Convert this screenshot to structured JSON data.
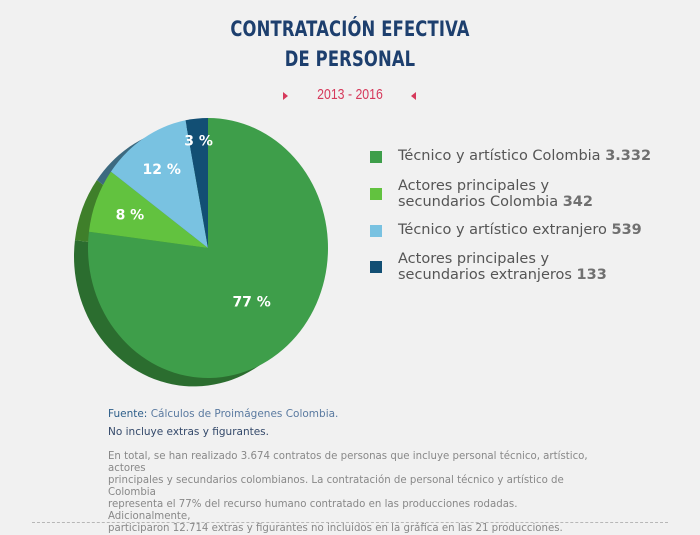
{
  "header": {
    "title_line1": "CONTRATACIÓN EFECTIVA",
    "title_line2": "DE PERSONAL",
    "subtitle": "2013 - 2016"
  },
  "chart_data": {
    "type": "pie",
    "title": "CONTRATACIÓN EFECTIVA DE PERSONAL",
    "subtitle": "2013 - 2016",
    "legend_position": "right",
    "series": [
      {
        "name": "Técnico y artístico Colombia",
        "value": 3332,
        "value_label": "3.332",
        "percent": 77,
        "percent_label": "77 %",
        "color": "#3e9e4a",
        "side_color": "#2b6d2f"
      },
      {
        "name": "Actores principales y secundarios Colombia",
        "name_lines": [
          "Actores principales y",
          "secundarios Colombia"
        ],
        "value": 342,
        "value_label": "342",
        "percent": 8,
        "percent_label": "8 %",
        "color": "#62c23f",
        "side_color": "#3f7f2a"
      },
      {
        "name": "Técnico y artístico extranjero",
        "value": 539,
        "value_label": "539",
        "percent": 12,
        "percent_label": "12 %",
        "color": "#79c2e1",
        "side_color": "#3d6a80"
      },
      {
        "name": "Actores principales y secundarios extranjeros",
        "name_lines": [
          "Actores principales y",
          "secundarios extranjeros"
        ],
        "value": 133,
        "value_label": "133",
        "percent": 3,
        "percent_label": "3 %",
        "color": "#124f74",
        "side_color": "#0b3450"
      }
    ]
  },
  "footer": {
    "source_label": "Fuente:",
    "source_text": "Cálculos de Proimágenes Colombia.",
    "note": "No incluye extras y figurantes.",
    "paragraph_lines": [
      "En total, se han realizado 3.674 contratos de personas que incluye personal técnico, artístico, actores",
      "principales y secundarios colombianos. La contratación de personal técnico y artístico de Colombia",
      "representa el 77% del recurso humano contratado en las producciones rodadas. Adicionalmente,",
      "participaron 12.714 extras y figurantes no incluidos en la gráfica en las 21 producciones."
    ]
  }
}
